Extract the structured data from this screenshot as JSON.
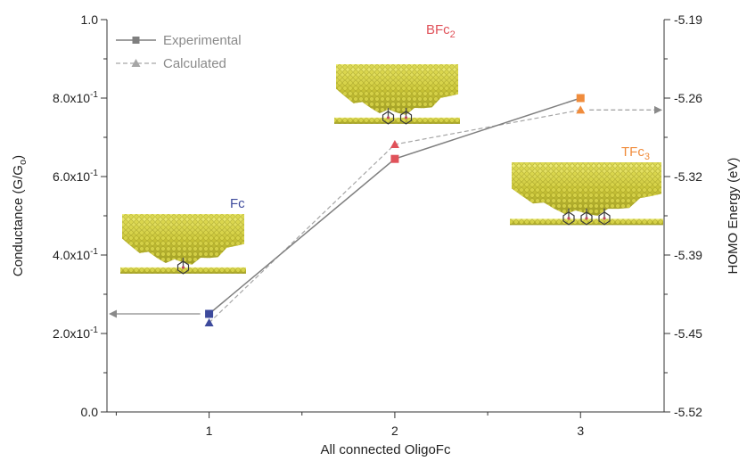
{
  "chart_data": {
    "type": "line",
    "title": "",
    "xlabel": "All connected OligoFc",
    "ylabel": "Conductance (G/G",
    "ylabel_sub": "o",
    "y2label": "HOMO Energy (eV)",
    "x": [
      1,
      2,
      3
    ],
    "xticks": [
      "1",
      "2",
      "3"
    ],
    "ylim": [
      0,
      1.0
    ],
    "yticks": [
      {
        "value": 0.0,
        "mantissa": "0.0",
        "exponent": ""
      },
      {
        "value": 0.2,
        "mantissa": "2.0x10",
        "exponent": "-1"
      },
      {
        "value": 0.4,
        "mantissa": "4.0x10",
        "exponent": "-1"
      },
      {
        "value": 0.6,
        "mantissa": "6.0x10",
        "exponent": "-1"
      },
      {
        "value": 0.8,
        "mantissa": "8.0x10",
        "exponent": "-1"
      },
      {
        "value": 1.0,
        "mantissa": "1.0",
        "exponent": ""
      }
    ],
    "y2lim": [
      -5.52,
      -5.19
    ],
    "y2ticks": [
      "-5.19",
      "-5.26",
      "-5.32",
      "-5.39",
      "-5.45",
      "-5.52"
    ],
    "grid": false,
    "legend_position": "top-left",
    "series": [
      {
        "name": "Experimental",
        "axis": "left",
        "marker": "square",
        "line": "solid",
        "color": "#7f7f7f",
        "values": [
          0.25,
          0.645,
          0.8
        ],
        "point_colors": [
          "#3d4a9c",
          "#e0525a",
          "#f08c3c"
        ]
      },
      {
        "name": "Calculated",
        "axis": "right",
        "marker": "triangle",
        "line": "dashed",
        "color": "#a6a6a6",
        "values": [
          -5.445,
          -5.295,
          -5.266
        ],
        "point_colors": [
          "#3d4a9c",
          "#e0525a",
          "#f08c3c"
        ]
      }
    ],
    "annotations": [
      {
        "base": "Fc",
        "sub": "",
        "color": "#3d4a9c"
      },
      {
        "base": "BFc",
        "sub": "2",
        "color": "#e0525a"
      },
      {
        "base": "TFc",
        "sub": "3",
        "color": "#f08c3c"
      }
    ]
  }
}
